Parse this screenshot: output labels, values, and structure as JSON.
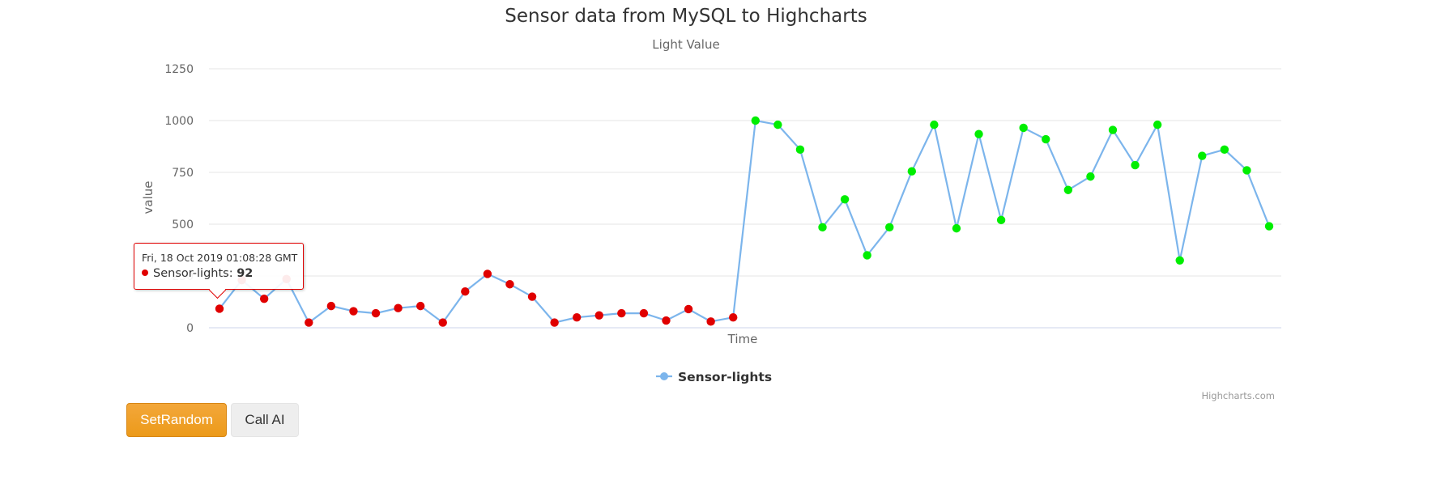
{
  "chart_data": {
    "type": "line",
    "title": "Sensor data from MySQL to Highcharts",
    "subtitle": "Light Value",
    "xlabel": "Time",
    "ylabel": "value",
    "ylim": [
      0,
      1250
    ],
    "yticks": [
      0,
      250,
      500,
      750,
      1000,
      1250
    ],
    "grid": true,
    "legend": "bottom-center",
    "series": [
      {
        "name": "Sensor-lights",
        "values": [
          92,
          230,
          140,
          235,
          25,
          105,
          80,
          70,
          95,
          105,
          25,
          175,
          260,
          210,
          150,
          25,
          50,
          60,
          70,
          70,
          35,
          90,
          30,
          50,
          1000,
          980,
          860,
          485,
          620,
          350,
          485,
          755,
          980,
          480,
          935,
          520,
          965,
          910,
          665,
          730,
          955,
          785,
          980,
          325,
          830,
          860,
          760,
          490
        ]
      }
    ],
    "colors": {
      "line": "#7cb5ec",
      "low_marker": "#e00000",
      "high_marker": "#00ee00",
      "grid": "#e6e6e6"
    }
  },
  "tooltip": {
    "time": "Fri, 18 Oct 2019 01:08:28 GMT",
    "series": "Sensor-lights",
    "value": "92"
  },
  "credits": "Highcharts.com",
  "buttons": {
    "random": "SetRandom",
    "ai": "Call AI"
  }
}
